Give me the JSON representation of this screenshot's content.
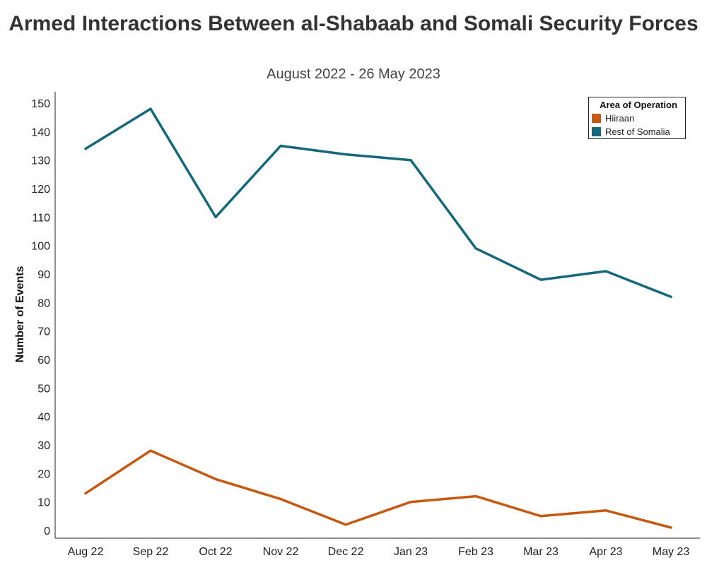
{
  "chart_data": {
    "type": "line",
    "title": "Armed Interactions Between al-Shabaab and Somali Security Forces",
    "subtitle": "August 2022 - 26 May 2023",
    "xlabel": "",
    "ylabel": "Number of Events",
    "categories": [
      "Aug 22",
      "Sep 22",
      "Oct 22",
      "Nov 22",
      "Dec 22",
      "Jan 23",
      "Feb 23",
      "Mar 23",
      "Apr 23",
      "May 23"
    ],
    "yticks": [
      0,
      10,
      20,
      30,
      40,
      50,
      60,
      70,
      80,
      90,
      100,
      110,
      120,
      130,
      140,
      150
    ],
    "ylim": [
      0,
      155
    ],
    "grid": false,
    "legend": {
      "title": "Area of Operation",
      "position": "top-right"
    },
    "series": [
      {
        "name": "Hiiraan",
        "color": "#c65911",
        "values": [
          13,
          28,
          18,
          11,
          2,
          10,
          12,
          5,
          7,
          1
        ]
      },
      {
        "name": "Rest of Somalia",
        "color": "#15687c",
        "values": [
          134,
          148,
          110,
          135,
          132,
          130,
          99,
          88,
          91,
          82
        ]
      }
    ]
  }
}
